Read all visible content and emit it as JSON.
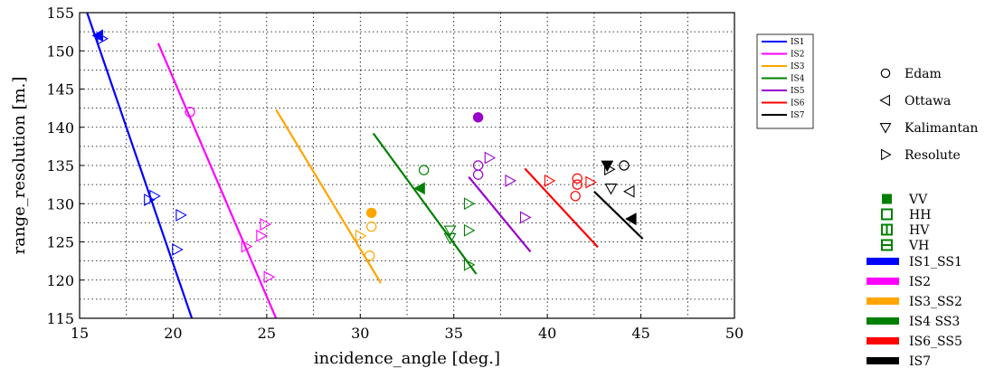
{
  "chart_data": {
    "type": "scatter",
    "xlabel": "incidence_angle [deg.]",
    "ylabel": "range_resolution [m.]",
    "xlim": [
      15,
      50
    ],
    "ylim": [
      115,
      155
    ],
    "xticks": [
      "15",
      "20",
      "25",
      "30",
      "35",
      "40",
      "45",
      "50"
    ],
    "yticks": [
      "115",
      "120",
      "125",
      "130",
      "135",
      "140",
      "145",
      "150",
      "155"
    ],
    "grid": true,
    "lines": [
      {
        "name": "IS1",
        "color": "#0000ff",
        "x": [
          15.4,
          21.0
        ],
        "y": [
          155,
          115
        ]
      },
      {
        "name": "IS2",
        "color": "#ff00ff",
        "x": [
          19.2,
          25.5
        ],
        "y": [
          151,
          115
        ]
      },
      {
        "name": "IS3",
        "color": "#ffa500",
        "x": [
          25.5,
          31.1
        ],
        "y": [
          142.3,
          119.6
        ]
      },
      {
        "name": "IS4",
        "color": "#008000",
        "x": [
          30.7,
          36.2
        ],
        "y": [
          139.2,
          120.8
        ]
      },
      {
        "name": "IS5",
        "color": "#9900cc",
        "x": [
          35.8,
          39.1
        ],
        "y": [
          133.5,
          123.7
        ]
      },
      {
        "name": "IS6",
        "color": "#ff0000",
        "x": [
          38.8,
          42.7
        ],
        "y": [
          134.6,
          124.3
        ]
      },
      {
        "name": "IS7",
        "color": "#000000",
        "x": [
          42.5,
          45.1
        ],
        "y": [
          131.6,
          125.4
        ]
      }
    ],
    "points": [
      {
        "x": 16.0,
        "y": 152.0,
        "marker": "tri-left",
        "pol": "VV",
        "color": "#0000ff"
      },
      {
        "x": 16.2,
        "y": 151.6,
        "marker": "tri-right",
        "pol": "HH",
        "color": "#0000ff"
      },
      {
        "x": 19.0,
        "y": 131.0,
        "marker": "tri-right",
        "pol": "HH",
        "color": "#0000ff"
      },
      {
        "x": 18.7,
        "y": 130.5,
        "marker": "tri-right",
        "pol": "HH",
        "color": "#0000ff"
      },
      {
        "x": 20.4,
        "y": 128.5,
        "marker": "tri-right",
        "pol": "HH",
        "color": "#0000ff"
      },
      {
        "x": 20.2,
        "y": 124.0,
        "marker": "tri-right",
        "pol": "HH",
        "color": "#0000ff"
      },
      {
        "x": 20.9,
        "y": 142.0,
        "marker": "circle",
        "pol": "HH",
        "color": "#ff00ff"
      },
      {
        "x": 24.9,
        "y": 127.3,
        "marker": "tri-right",
        "pol": "HH",
        "color": "#ff00ff"
      },
      {
        "x": 24.7,
        "y": 125.8,
        "marker": "tri-right",
        "pol": "HH",
        "color": "#ff00ff"
      },
      {
        "x": 23.9,
        "y": 124.4,
        "marker": "tri-right",
        "pol": "HH",
        "color": "#ff00ff"
      },
      {
        "x": 25.1,
        "y": 120.4,
        "marker": "tri-right",
        "pol": "HH",
        "color": "#ff00ff"
      },
      {
        "x": 30.6,
        "y": 128.8,
        "marker": "circle",
        "pol": "VV",
        "color": "#ffa500"
      },
      {
        "x": 30.6,
        "y": 127.0,
        "marker": "circle",
        "pol": "HH",
        "color": "#ffa500"
      },
      {
        "x": 30.5,
        "y": 123.2,
        "marker": "circle",
        "pol": "HH",
        "color": "#ffa500"
      },
      {
        "x": 30.0,
        "y": 125.8,
        "marker": "tri-right",
        "pol": "HH",
        "color": "#ffa500"
      },
      {
        "x": 33.4,
        "y": 134.4,
        "marker": "circle",
        "pol": "HH",
        "color": "#008000"
      },
      {
        "x": 33.2,
        "y": 132.0,
        "marker": "tri-left",
        "pol": "VV",
        "color": "#008000"
      },
      {
        "x": 34.8,
        "y": 126.5,
        "marker": "tri-down",
        "pol": "HH",
        "color": "#008000"
      },
      {
        "x": 34.8,
        "y": 125.5,
        "marker": "tri-down",
        "pol": "HH",
        "color": "#008000"
      },
      {
        "x": 35.8,
        "y": 130.0,
        "marker": "tri-right",
        "pol": "HH",
        "color": "#008000"
      },
      {
        "x": 35.8,
        "y": 126.5,
        "marker": "tri-right",
        "pol": "HH",
        "color": "#008000"
      },
      {
        "x": 35.8,
        "y": 122.0,
        "marker": "tri-right",
        "pol": "HH",
        "color": "#008000"
      },
      {
        "x": 36.3,
        "y": 141.3,
        "marker": "circle",
        "pol": "VV",
        "color": "#9900cc"
      },
      {
        "x": 36.3,
        "y": 135.0,
        "marker": "circle",
        "pol": "HH",
        "color": "#9900cc"
      },
      {
        "x": 36.3,
        "y": 133.8,
        "marker": "circle",
        "pol": "HH",
        "color": "#9900cc"
      },
      {
        "x": 36.9,
        "y": 136.0,
        "marker": "tri-right",
        "pol": "HH",
        "color": "#9900cc"
      },
      {
        "x": 38.0,
        "y": 133.0,
        "marker": "tri-right",
        "pol": "HH",
        "color": "#9900cc"
      },
      {
        "x": 38.8,
        "y": 128.2,
        "marker": "tri-right",
        "pol": "HH",
        "color": "#9900cc"
      },
      {
        "x": 40.1,
        "y": 133.0,
        "marker": "tri-right",
        "pol": "HH",
        "color": "#ff0000"
      },
      {
        "x": 41.6,
        "y": 133.3,
        "marker": "circle",
        "pol": "HH",
        "color": "#ff0000"
      },
      {
        "x": 41.6,
        "y": 132.5,
        "marker": "circle",
        "pol": "HH",
        "color": "#ff0000"
      },
      {
        "x": 41.5,
        "y": 131.0,
        "marker": "circle",
        "pol": "HH",
        "color": "#ff0000"
      },
      {
        "x": 42.3,
        "y": 132.8,
        "marker": "tri-right",
        "pol": "HH",
        "color": "#ff0000"
      },
      {
        "x": 43.2,
        "y": 135.0,
        "marker": "tri-down",
        "pol": "VV",
        "color": "#000000"
      },
      {
        "x": 43.3,
        "y": 134.5,
        "marker": "tri-right",
        "pol": "HH",
        "color": "#000000"
      },
      {
        "x": 44.1,
        "y": 135.0,
        "marker": "circle",
        "pol": "HH",
        "color": "#000000"
      },
      {
        "x": 43.4,
        "y": 132.0,
        "marker": "tri-down",
        "pol": "HH",
        "color": "#000000"
      },
      {
        "x": 44.4,
        "y": 131.6,
        "marker": "tri-left",
        "pol": "HH",
        "color": "#000000"
      },
      {
        "x": 44.5,
        "y": 128.0,
        "marker": "tri-left",
        "pol": "VV",
        "color": "#000000"
      }
    ]
  },
  "legend_inner": [
    {
      "label": "IS1",
      "color": "#0000ff"
    },
    {
      "label": "IS2",
      "color": "#ff00ff"
    },
    {
      "label": "IS3",
      "color": "#ffa500"
    },
    {
      "label": "IS4",
      "color": "#008000"
    },
    {
      "label": "IS5",
      "color": "#9900cc"
    },
    {
      "label": "IS6",
      "color": "#ff0000"
    },
    {
      "label": "IS7",
      "color": "#000000"
    }
  ],
  "legend_sites": [
    {
      "symbol": "circle",
      "label": "Edam"
    },
    {
      "symbol": "tri-left",
      "label": "Ottawa"
    },
    {
      "symbol": "tri-down",
      "label": "Kalimantan"
    },
    {
      "symbol": "tri-right",
      "label": "Resolute"
    }
  ],
  "legend_pol": [
    {
      "style": "filled",
      "label": "VV"
    },
    {
      "style": "open",
      "label": "HH"
    },
    {
      "style": "vbars",
      "label": "HV"
    },
    {
      "style": "hbars",
      "label": "VH"
    }
  ],
  "legend_modes": [
    {
      "label": "IS1_SS1",
      "color": "#0000ff"
    },
    {
      "label": "IS2",
      "color": "#ff00ff"
    },
    {
      "label": "IS3_SS2",
      "color": "#ffa500"
    },
    {
      "label": "IS4  SS3",
      "color": "#008000"
    },
    {
      "label": "IS6_SS5",
      "color": "#ff0000"
    },
    {
      "label": "IS7",
      "color": "#000000"
    }
  ]
}
